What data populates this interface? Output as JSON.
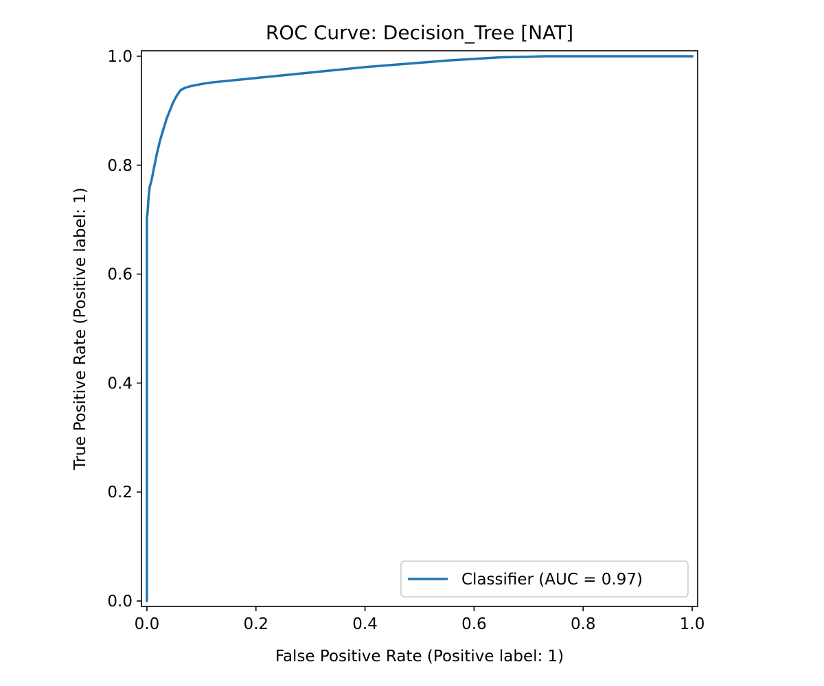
{
  "chart_data": {
    "type": "line",
    "title": "ROC Curve: Decision_Tree [NAT]",
    "xlabel": "False Positive Rate (Positive label: 1)",
    "ylabel": "True Positive Rate (Positive label: 1)",
    "xlim": [
      -0.01,
      1.01
    ],
    "ylim": [
      -0.01,
      1.01
    ],
    "xticks": [
      0.0,
      0.2,
      0.4,
      0.6,
      0.8,
      1.0
    ],
    "yticks": [
      0.0,
      0.2,
      0.4,
      0.6,
      0.8,
      1.0
    ],
    "xtick_labels": [
      "0.0",
      "0.2",
      "0.4",
      "0.6",
      "0.8",
      "1.0"
    ],
    "ytick_labels": [
      "0.0",
      "0.2",
      "0.4",
      "0.6",
      "0.8",
      "1.0"
    ],
    "grid": false,
    "legend_position": "lower-right",
    "line_color": "#1f77b4",
    "series": [
      {
        "name": "Classifier (AUC = 0.97)",
        "x": [
          0.0,
          0.0,
          0.001,
          0.003,
          0.005,
          0.008,
          0.012,
          0.018,
          0.024,
          0.03,
          0.036,
          0.042,
          0.048,
          0.055,
          0.062,
          0.07,
          0.08,
          0.09,
          0.1,
          0.12,
          0.15,
          0.17,
          0.2,
          0.25,
          0.3,
          0.35,
          0.4,
          0.45,
          0.5,
          0.55,
          0.6,
          0.65,
          0.7,
          0.73,
          0.8,
          0.9,
          1.0
        ],
        "y": [
          0.0,
          0.705,
          0.71,
          0.74,
          0.76,
          0.77,
          0.79,
          0.82,
          0.845,
          0.865,
          0.885,
          0.9,
          0.915,
          0.928,
          0.938,
          0.942,
          0.945,
          0.947,
          0.949,
          0.952,
          0.955,
          0.957,
          0.96,
          0.965,
          0.97,
          0.975,
          0.98,
          0.984,
          0.988,
          0.992,
          0.995,
          0.998,
          0.999,
          1.0,
          1.0,
          1.0,
          1.0
        ]
      }
    ]
  }
}
